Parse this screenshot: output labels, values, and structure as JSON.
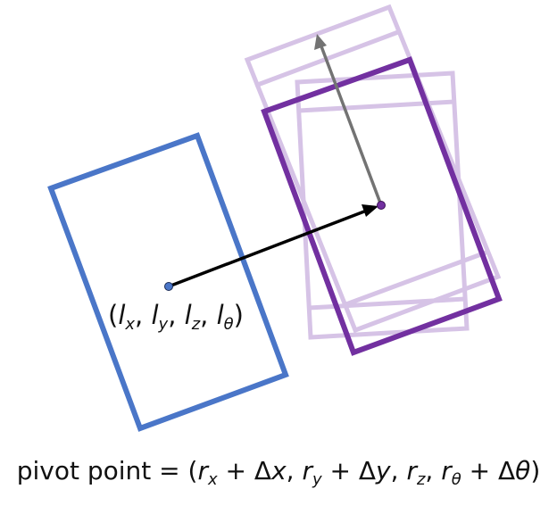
{
  "colors": {
    "left_box": "#4a76c8",
    "right_box": "#7230a0",
    "ghost_box": "#d6c3e6",
    "translation_arrow": "#000000",
    "heading_arrow": "#737373",
    "text": "#111111"
  },
  "left_label": {
    "open": "(",
    "l1": "l",
    "s1": "x",
    "c1": ", ",
    "l2": "l",
    "s2": "y",
    "c2": ", ",
    "l3": "l",
    "s3": "z",
    "c3": ", ",
    "l4": "l",
    "s4": "θ",
    "close": ")"
  },
  "caption": {
    "prefix": "pivot point = (",
    "r1": "r",
    "s1": "x",
    "t1": " + Δ",
    "v1": "x",
    "c1": ", ",
    "r2": "r",
    "s2": "y",
    "t2": " + Δ",
    "v2": "y",
    "c2": ", ",
    "r3": "r",
    "s3": "z",
    "c3": ", ",
    "r4": "r",
    "s4": "θ",
    "t4": " + Δ",
    "v4": "θ",
    "close": ")"
  }
}
